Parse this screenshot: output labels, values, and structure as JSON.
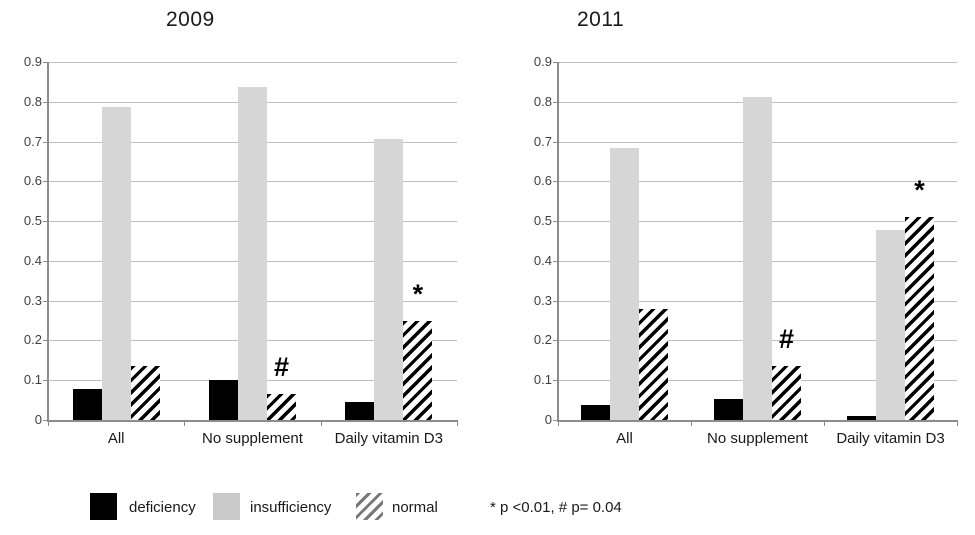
{
  "colors": {
    "deficiency": "#000000",
    "insufficiency": "#d6d6d6",
    "normal_hatch_stroke": "#000000",
    "gridline": "#bfbfbf",
    "axis": "#8c8c8c",
    "text": "#1a1a1a"
  },
  "legend": {
    "items": [
      {
        "label": "deficiency",
        "swatch": "solid-black"
      },
      {
        "label": "insufficiency",
        "swatch": "solid-gray"
      },
      {
        "label": "normal",
        "swatch": "diagonal-hatch"
      }
    ],
    "note": "* p <0.01, # p= 0.04"
  },
  "chart_data": [
    {
      "type": "bar",
      "title": "2009",
      "categories": [
        "All",
        "No supplement",
        "Daily vitamin D3"
      ],
      "series": [
        {
          "name": "deficiency",
          "values": [
            0.078,
            0.1,
            0.046
          ]
        },
        {
          "name": "insufficiency",
          "values": [
            0.788,
            0.838,
            0.706
          ]
        },
        {
          "name": "normal",
          "values": [
            0.135,
            0.065,
            0.25
          ]
        }
      ],
      "annotations": [
        {
          "category": "No supplement",
          "series": "normal",
          "symbol": "#"
        },
        {
          "category": "Daily vitamin D3",
          "series": "normal",
          "symbol": "*"
        }
      ],
      "ylim": [
        0,
        0.9
      ],
      "ytick_step": 0.1,
      "y_tick_labels": [
        "0",
        "0.1",
        "0.2",
        "0.3",
        "0.4",
        "0.5",
        "0.6",
        "0.7",
        "0.8",
        "0.9"
      ],
      "grid": true,
      "xlabel": "",
      "ylabel": "",
      "legend_position": "bottom"
    },
    {
      "type": "bar",
      "title": "2011",
      "categories": [
        "All",
        "No supplement",
        "Daily vitamin D3"
      ],
      "series": [
        {
          "name": "deficiency",
          "values": [
            0.038,
            0.052,
            0.011
          ]
        },
        {
          "name": "insufficiency",
          "values": [
            0.685,
            0.813,
            0.478
          ]
        },
        {
          "name": "normal",
          "values": [
            0.278,
            0.135,
            0.51
          ]
        }
      ],
      "annotations": [
        {
          "category": "No supplement",
          "series": "normal",
          "symbol": "#"
        },
        {
          "category": "Daily vitamin D3",
          "series": "normal",
          "symbol": "*"
        }
      ],
      "ylim": [
        0,
        0.9
      ],
      "ytick_step": 0.1,
      "y_tick_labels": [
        "0",
        "0.1",
        "0.2",
        "0.3",
        "0.4",
        "0.5",
        "0.6",
        "0.7",
        "0.8",
        "0.9"
      ],
      "grid": true,
      "xlabel": "",
      "ylabel": "",
      "legend_position": "bottom"
    }
  ]
}
